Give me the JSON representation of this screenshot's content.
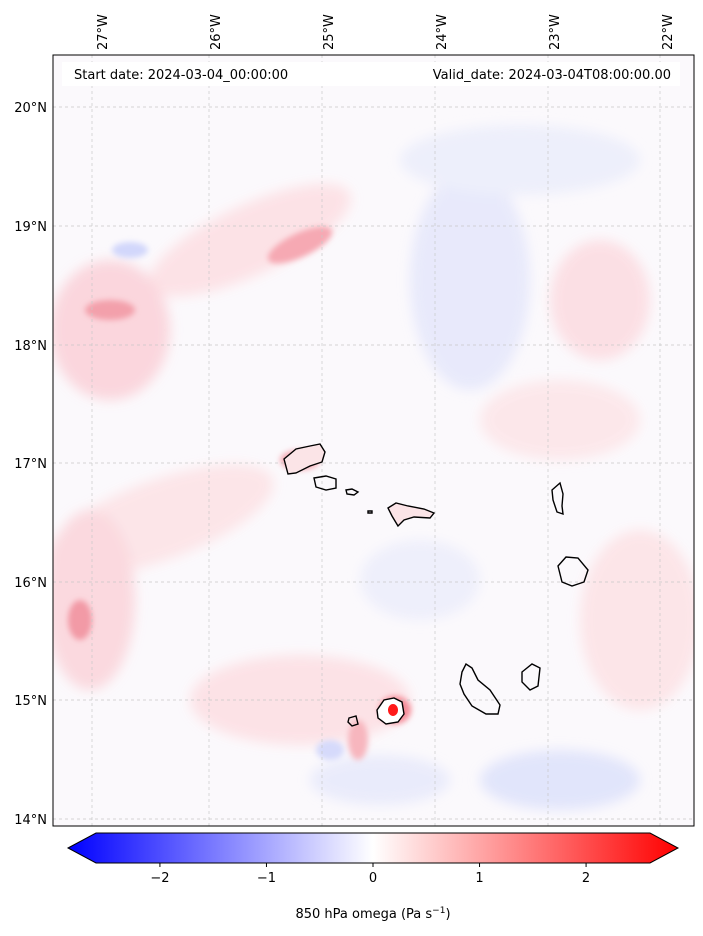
{
  "map": {
    "header": {
      "start_date": "Start date: 2024-03-04_00:00:00",
      "valid_date": "Valid_date: 2024-03-04T08:00:00.00"
    },
    "longitude_ticks": [
      "27°W",
      "26°W",
      "25°W",
      "24°W",
      "23°W",
      "22°W"
    ],
    "latitude_ticks": [
      "20°N",
      "19°N",
      "18°N",
      "17°N",
      "16°N",
      "15°N",
      "14°N"
    ],
    "colorbar": {
      "ticks": [
        "−2",
        "−1",
        "0",
        "1",
        "2"
      ],
      "tick_values": [
        -2,
        -1,
        0,
        1,
        2
      ],
      "range": [
        -2.6,
        2.6
      ],
      "colors": {
        "low": "#0000ff",
        "mid": "#ffffff",
        "high": "#ff0000"
      }
    },
    "field_label": "850 hPa omega (Pa s",
    "field_label_exponent": "−1",
    "field_label_end": ")"
  }
}
